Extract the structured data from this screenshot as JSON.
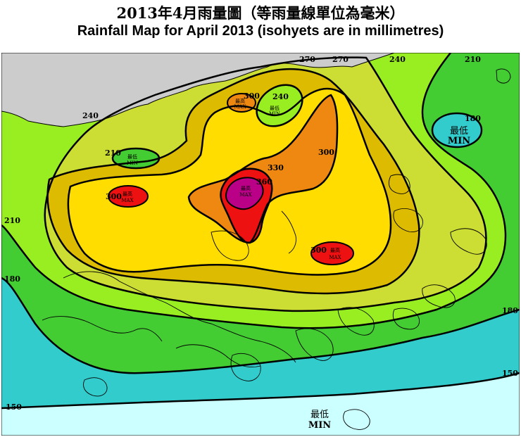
{
  "title": {
    "chinese": "2013年4月雨量圖（等雨量線單位為毫米）",
    "english": "Rainfall Map for April 2013 (isohyets are in millimetres)"
  },
  "colors": {
    "lt150": "#ccffff",
    "r150_180": "#33cccc",
    "r180_210": "#44cc33",
    "r210_240": "#99ee22",
    "r240_270": "#ccdd33",
    "r270_300": "#ddbb00",
    "r300_330": "#ffdd00",
    "r330_360": "#ee8811",
    "r360_390": "#ee1111",
    "gt390": "#bb0088",
    "outside": "#cccccc"
  },
  "isohyets": {
    "l150_left": "150",
    "l150_right": "150",
    "l180_left": "180",
    "l180_right": "180",
    "l180_east": "180",
    "l210_left": "210",
    "l210_nw": "210",
    "l210_ne": "210",
    "l240_nw": "240",
    "l240_n": "240",
    "l240_ne": "240",
    "l270_n1": "270",
    "l270_n2": "270",
    "l300_w": "300",
    "l300_n": "300",
    "l300_c": "300",
    "l300_se": "300",
    "l330": "330",
    "l360": "360"
  },
  "markers": {
    "max_zh": "最高",
    "max_en": "MAX",
    "min_zh": "最低",
    "min_en": "MIN"
  }
}
